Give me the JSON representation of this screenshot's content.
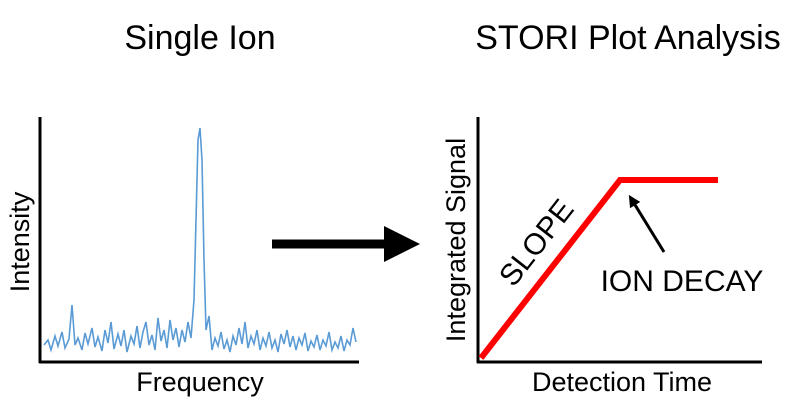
{
  "left_panel": {
    "title": "Single Ion",
    "y_label": "Intensity",
    "x_label": "Frequency"
  },
  "right_panel": {
    "title": "STORI Plot Analysis",
    "y_label": "Integrated Signal",
    "x_label": "Detection Time",
    "annotations": {
      "slope": "SLOPE",
      "decay": "ION DECAY"
    }
  }
}
